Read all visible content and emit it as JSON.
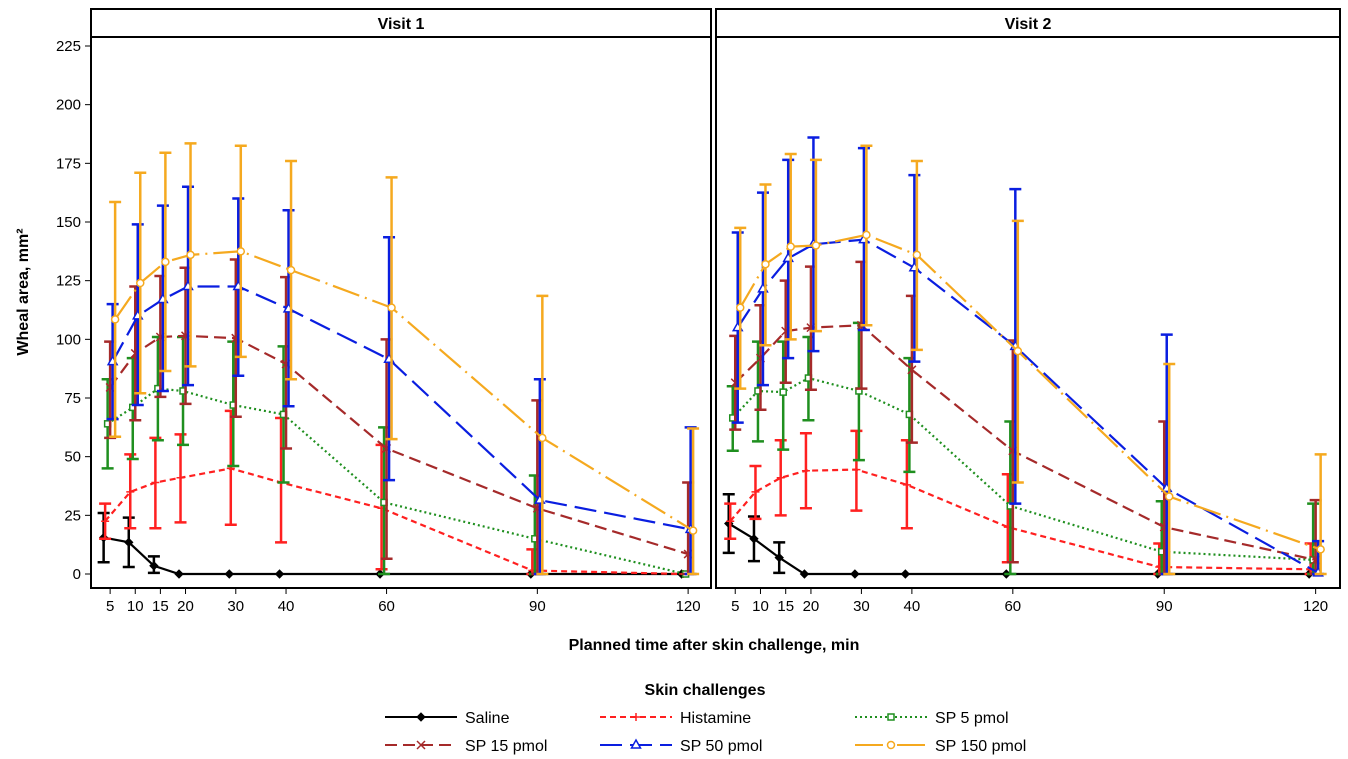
{
  "chart_data": {
    "type": "line",
    "panels": [
      "Visit 1",
      "Visit 2"
    ],
    "ylabel": "Wheal area, mm²",
    "xlabel": "Planned time after skin challenge, min",
    "ylim": [
      0,
      225
    ],
    "yticks": [
      0,
      25,
      50,
      75,
      100,
      125,
      150,
      175,
      200,
      225
    ],
    "xticks": [
      5,
      10,
      15,
      20,
      30,
      40,
      60,
      90,
      120
    ],
    "x": [
      5,
      10,
      15,
      20,
      30,
      40,
      60,
      90,
      120
    ],
    "legend_title": "Skin challenges",
    "legend_position": "bottom",
    "series": [
      {
        "name": "Saline",
        "color": "#000000",
        "marker": "diamond",
        "dash": "solid",
        "visit1": [
          15.5,
          13.5,
          3.5,
          0,
          0,
          0,
          0,
          0,
          0
        ],
        "visit1_lo": [
          5,
          3,
          0.5,
          0,
          0,
          0,
          0,
          0,
          0
        ],
        "visit1_hi": [
          26,
          24,
          7.5,
          0,
          0,
          0,
          0,
          0,
          0
        ],
        "visit2": [
          21.5,
          15,
          7,
          0,
          0,
          0,
          0,
          0,
          0
        ],
        "visit2_lo": [
          9,
          5.5,
          0.5,
          0,
          0,
          0,
          0,
          0,
          0
        ],
        "visit2_hi": [
          34,
          24.5,
          13.5,
          0,
          0,
          0,
          0,
          0,
          0
        ]
      },
      {
        "name": "Histamine",
        "color": "#ff2020",
        "marker": "plus",
        "dash": "short",
        "visit1": [
          22.5,
          35,
          39,
          41,
          45,
          39,
          28,
          1.5,
          0
        ],
        "visit1_lo": [
          15,
          19.5,
          19.5,
          22,
          21,
          13.5,
          2,
          0,
          0
        ],
        "visit1_hi": [
          30,
          51,
          58,
          59.5,
          69.5,
          66.5,
          55,
          10.5,
          0
        ],
        "visit2": [
          22.5,
          35,
          41,
          44,
          44.5,
          38,
          20,
          3,
          2
        ],
        "visit2_lo": [
          15,
          23.5,
          25,
          28,
          27,
          19.5,
          5,
          0,
          0
        ],
        "visit2_hi": [
          30,
          46,
          57,
          60,
          61,
          57,
          42.5,
          13,
          13
        ]
      },
      {
        "name": "SP 5 pmol",
        "color": "#1f8f1f",
        "marker": "square",
        "dash": "dotted",
        "visit1": [
          64,
          71,
          79,
          78,
          72,
          68,
          30.5,
          15,
          0
        ],
        "visit1_lo": [
          45,
          49,
          57,
          55,
          46,
          39,
          0,
          0,
          0
        ],
        "visit1_hi": [
          83,
          92,
          101,
          101,
          99,
          97,
          62.5,
          42,
          0
        ],
        "visit2": [
          66.5,
          78,
          77.5,
          83.5,
          78,
          68,
          29,
          9.5,
          6
        ],
        "visit2_lo": [
          52.5,
          56.5,
          53,
          65.5,
          48.5,
          43.5,
          0,
          0,
          0
        ],
        "visit2_hi": [
          80,
          99,
          99,
          101,
          107,
          92,
          65,
          31,
          30
        ]
      },
      {
        "name": "SP 15 pmol",
        "color": "#a52a2a",
        "marker": "x",
        "dash": "dash",
        "visit1": [
          79.5,
          94,
          101,
          101.5,
          100.5,
          89.5,
          53.5,
          28,
          8.5
        ],
        "visit1_lo": [
          58,
          65.5,
          75.5,
          72.5,
          67,
          53.5,
          6.5,
          0,
          0
        ],
        "visit1_hi": [
          99,
          122.5,
          127,
          130.5,
          134,
          126.5,
          100,
          74,
          39
        ],
        "visit2": [
          81.5,
          92,
          103.5,
          105,
          106,
          87,
          52.5,
          20,
          6
        ],
        "visit2_lo": [
          61.5,
          70,
          81.5,
          78.5,
          79,
          56,
          5,
          0,
          0
        ],
        "visit2_hi": [
          101.5,
          114.5,
          125,
          131,
          133,
          118.5,
          99.5,
          65,
          31.5
        ]
      },
      {
        "name": "SP 50 pmol",
        "color": "#0a1ee0",
        "marker": "triangle",
        "dash": "longdash",
        "visit1": [
          90.5,
          110,
          117,
          122.5,
          122.5,
          113,
          91.5,
          31.5,
          19
        ],
        "visit1_lo": [
          66,
          72,
          78,
          80.5,
          84.5,
          71.5,
          40,
          0,
          0
        ],
        "visit1_hi": [
          115,
          149,
          157,
          165,
          160,
          155,
          143.5,
          83,
          62.5
        ],
        "visit2": [
          105,
          121.5,
          134.5,
          140.5,
          142.5,
          130.5,
          97,
          36.5,
          0.5
        ],
        "visit2_lo": [
          64.5,
          80.5,
          92,
          95,
          104,
          90.5,
          30,
          0,
          0
        ],
        "visit2_hi": [
          145.5,
          162.5,
          176.5,
          186,
          181.5,
          170,
          164,
          102,
          14
        ]
      },
      {
        "name": "SP 150 pmol",
        "color": "#f5a91f",
        "marker": "circle",
        "dash": "longdashdot",
        "visit1": [
          108.5,
          124,
          133,
          136,
          137.5,
          129.5,
          113.5,
          58,
          18.5
        ],
        "visit1_lo": [
          58.5,
          77,
          86.5,
          88.5,
          92.5,
          83,
          57.5,
          0,
          0
        ],
        "visit1_hi": [
          158.5,
          171,
          179.5,
          183.5,
          182.5,
          176,
          169,
          118.5,
          62
        ],
        "visit2": [
          113.5,
          132,
          139.5,
          140,
          144.5,
          136,
          95,
          33,
          10.5
        ],
        "visit2_lo": [
          79,
          97.5,
          100,
          103.5,
          106,
          95.5,
          39,
          0,
          0
        ],
        "visit2_hi": [
          147.5,
          166,
          179,
          176.5,
          182.5,
          176,
          150.5,
          89.5,
          51
        ]
      }
    ]
  }
}
